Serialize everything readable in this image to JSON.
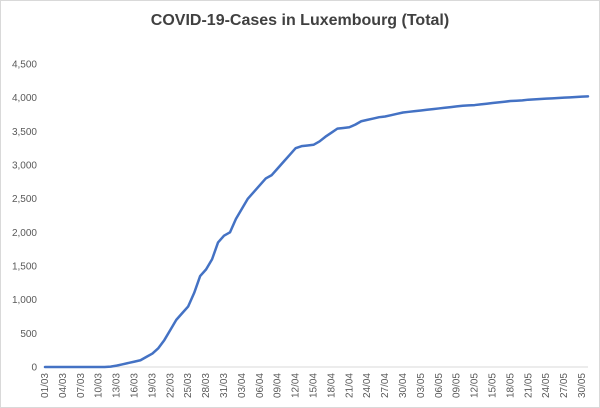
{
  "chart_data": {
    "type": "line",
    "title": "COVID-19-Cases in Luxembourg (Total)",
    "xlabel": "",
    "ylabel": "",
    "ylim": [
      0,
      4500
    ],
    "yticks": [
      0,
      500,
      1000,
      1500,
      2000,
      2500,
      3000,
      3500,
      4000,
      4500
    ],
    "ytick_labels": [
      "0",
      "500",
      "1,000",
      "1,500",
      "2,000",
      "2,500",
      "3,000",
      "3,500",
      "4,000",
      "4,500"
    ],
    "x_tick_labels": [
      "01/03",
      "04/03",
      "07/03",
      "10/03",
      "13/03",
      "16/03",
      "19/03",
      "22/03",
      "25/03",
      "28/03",
      "31/03",
      "03/04",
      "06/04",
      "09/04",
      "12/04",
      "15/04",
      "18/04",
      "21/04",
      "24/04",
      "27/04",
      "30/04",
      "03/05",
      "06/05",
      "09/05",
      "12/05",
      "15/05",
      "18/05",
      "21/05",
      "24/05",
      "27/05",
      "30/05"
    ],
    "x_tick_every": 3,
    "grid": false,
    "legend": "none",
    "line_color": "#4472c4",
    "series": [
      {
        "values": [
          0,
          0,
          0,
          0,
          0,
          0,
          0,
          0,
          0,
          0,
          0,
          5,
          20,
          40,
          60,
          80,
          100,
          150,
          200,
          280,
          400,
          550,
          700,
          800,
          900,
          1100,
          1350,
          1450,
          1600,
          1850,
          1950,
          2000,
          2200,
          2350,
          2500,
          2600,
          2700,
          2800,
          2850,
          2950,
          3050,
          3150,
          3250,
          3280,
          3290,
          3300,
          3350,
          3420,
          3480,
          3540,
          3550,
          3560,
          3600,
          3650,
          3670,
          3690,
          3710,
          3720,
          3740,
          3760,
          3780,
          3790,
          3800,
          3810,
          3820,
          3830,
          3840,
          3850,
          3860,
          3870,
          3880,
          3885,
          3890,
          3900,
          3910,
          3920,
          3930,
          3940,
          3950,
          3955,
          3960,
          3970,
          3975,
          3980,
          3985,
          3990,
          3995,
          4000,
          4005,
          4010,
          4015,
          4020
        ]
      }
    ]
  }
}
